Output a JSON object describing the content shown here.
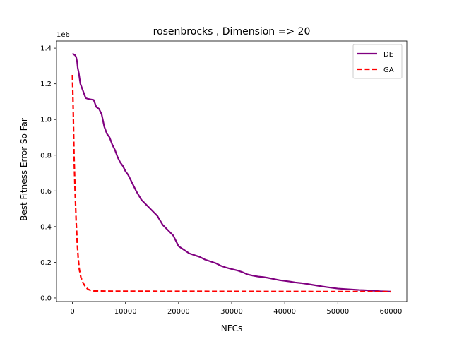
{
  "chart_data": {
    "type": "line",
    "title": "rosenbrocks , Dimension => 20",
    "xlabel": "NFCs",
    "ylabel": "Best Fitness Error So Far",
    "y_offset_label": "1e6",
    "xlim": [
      -3000,
      63000
    ],
    "ylim": [
      -20000,
      1440000
    ],
    "xticks": [
      0,
      10000,
      20000,
      30000,
      40000,
      50000,
      60000
    ],
    "xtick_labels": [
      "0",
      "10000",
      "20000",
      "30000",
      "40000",
      "50000",
      "60000"
    ],
    "yticks": [
      0,
      200000,
      400000,
      600000,
      800000,
      1000000,
      1200000,
      1400000
    ],
    "ytick_labels": [
      "0.0",
      "0.2",
      "0.4",
      "0.6",
      "0.8",
      "1.0",
      "1.2",
      "1.4"
    ],
    "grid": false,
    "legend_position": "top-right",
    "series": [
      {
        "name": "DE",
        "color": "#800080",
        "style": "solid",
        "x": [
          0,
          500,
          700,
          900,
          1000,
          1200,
          1500,
          2000,
          2500,
          3000,
          4000,
          4500,
          5000,
          5500,
          6000,
          6500,
          7000,
          7500,
          8000,
          8500,
          9000,
          9500,
          10000,
          10500,
          11000,
          11500,
          12000,
          13000,
          14000,
          15000,
          16000,
          17000,
          18000,
          19000,
          20000,
          21000,
          22000,
          23000,
          24000,
          25000,
          26000,
          27000,
          28000,
          29000,
          30000,
          31000,
          32000,
          33000,
          34000,
          35000,
          36000,
          37000,
          38000,
          39000,
          40000,
          41000,
          42000,
          43000,
          44000,
          45000,
          46000,
          47000,
          48000,
          49000,
          50000,
          51000,
          52000,
          53000,
          54000,
          55000,
          56000,
          57000,
          58000,
          59000,
          60000
        ],
        "y": [
          1370000,
          1360000,
          1350000,
          1320000,
          1290000,
          1260000,
          1200000,
          1160000,
          1120000,
          1115000,
          1110000,
          1070000,
          1060000,
          1030000,
          960000,
          920000,
          900000,
          860000,
          830000,
          790000,
          760000,
          740000,
          710000,
          690000,
          660000,
          630000,
          600000,
          550000,
          520000,
          490000,
          460000,
          410000,
          380000,
          350000,
          290000,
          270000,
          250000,
          240000,
          230000,
          215000,
          205000,
          195000,
          180000,
          170000,
          162000,
          155000,
          145000,
          132000,
          125000,
          120000,
          117000,
          112000,
          106000,
          100000,
          96000,
          92000,
          87000,
          84000,
          80000,
          75000,
          70000,
          65000,
          61000,
          57000,
          53000,
          51000,
          49000,
          47000,
          45000,
          44000,
          42000,
          40000,
          38000,
          37000,
          36000
        ]
      },
      {
        "name": "GA",
        "color": "#ff0000",
        "style": "dashed",
        "x": [
          0,
          150,
          300,
          500,
          700,
          900,
          1100,
          1300,
          1600,
          2000,
          2500,
          3000,
          3500,
          4000,
          5000,
          6000,
          8000,
          10000,
          20000,
          30000,
          40000,
          50000,
          60000
        ],
        "y": [
          1250000,
          1050000,
          800000,
          600000,
          430000,
          310000,
          220000,
          160000,
          115000,
          85000,
          60000,
          48000,
          42000,
          40000,
          39000,
          38500,
          38000,
          38000,
          37500,
          37000,
          36500,
          36000,
          35500
        ]
      }
    ]
  }
}
